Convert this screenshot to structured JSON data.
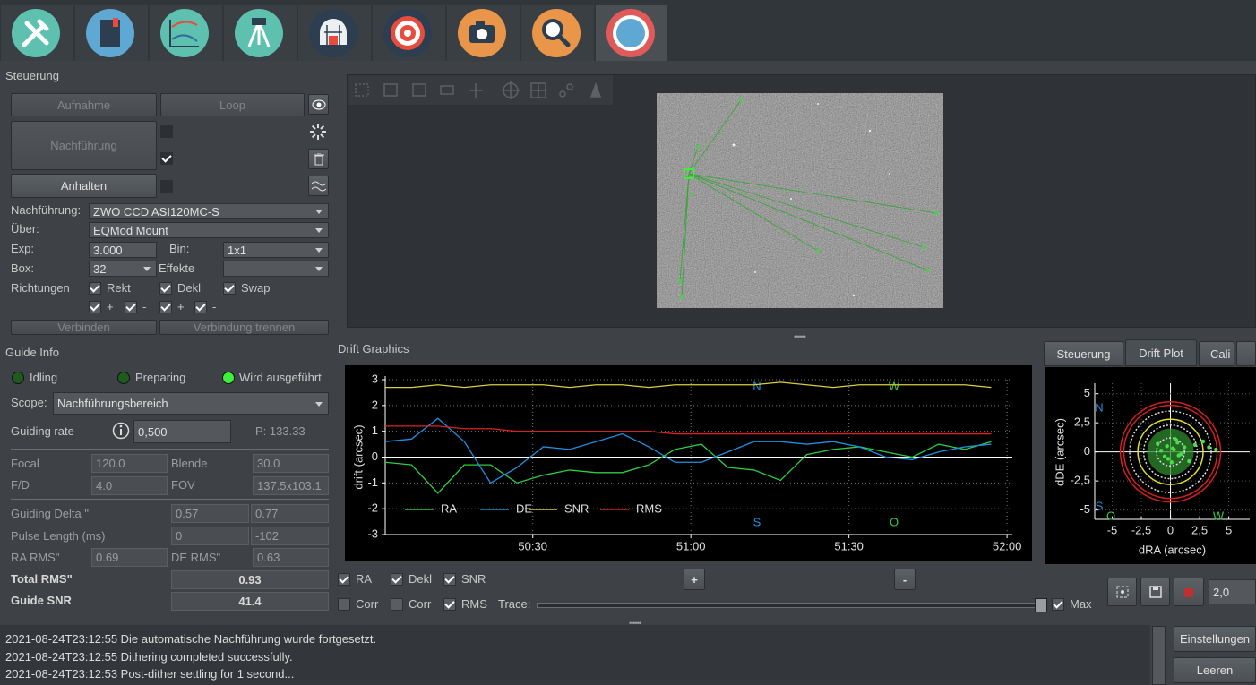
{
  "control": {
    "title": "Steuerung",
    "buttons": [
      "Aufnahme",
      "Loop",
      "Nachführung",
      "Anhalten",
      "Verbinden",
      "Verbindung trennen"
    ],
    "guider_label": "Nachführung:",
    "guider": "ZWO CCD ASI120MC-S",
    "via_label": "Über:",
    "via": "EQMod Mount",
    "exp_label": "Exp:",
    "exp": "3.000",
    "bin_label": "Bin:",
    "bin": "1x1",
    "box_label": "Box:",
    "box": "32",
    "effects_label": "Effekte",
    "effects": "--",
    "directions_label": "Richtungen",
    "ra": "Rekt",
    "dec": "Dekl",
    "swap": "Swap",
    "plus": "+",
    "minus": "-"
  },
  "guide_info": {
    "title": "Guide Info",
    "states": [
      "Idling",
      "Preparing",
      "Wird ausgeführt"
    ],
    "scope_label": "Scope:",
    "scope": "Nachführungsbereich",
    "rate_label": "Guiding rate",
    "rate": "0,500",
    "p": "P: 133.33",
    "focal_label": "Focal",
    "focal": "120.0",
    "aperture_label": "Blende",
    "aperture": "30.0",
    "fd_label": "F/D",
    "fd": "4.0",
    "fov_label": "FOV",
    "fov": "137.5x103.1",
    "delta_label": "Guiding Delta \"",
    "delta": [
      "0.57",
      "0.77"
    ],
    "pulse_label": "Pulse Length (ms)",
    "pulse": [
      "0",
      "-102"
    ],
    "ra_rms_label": "RA RMS\"",
    "ra_rms": "0.69",
    "de_rms_label": "DE RMS\"",
    "de_rms": "0.63",
    "total_rms_label": "Total RMS\"",
    "total_rms": "0.93",
    "snr_label": "Guide SNR",
    "snr": "41.4"
  },
  "drift_title": "Drift Graphics",
  "chart_data": [
    {
      "type": "line",
      "ylabel": "drift (arcsec)",
      "x": [
        3002,
        3007,
        3012,
        3017,
        3022,
        3027,
        3032,
        3037,
        3042,
        3047,
        3052,
        3057,
        3062,
        3067,
        3072,
        3077,
        3082,
        3087,
        3092,
        3097,
        3102,
        3107,
        3112,
        3117
      ],
      "xlim": [
        3002,
        3121
      ],
      "xticks": [
        {
          "value": 3030,
          "label": "50:30"
        },
        {
          "value": 3060,
          "label": "51:00"
        },
        {
          "value": 3090,
          "label": "51:30"
        },
        {
          "value": 3120,
          "label": "52:00"
        }
      ],
      "ylim": [
        -3,
        3
      ],
      "yticks": [
        -3,
        -2,
        -1,
        0,
        1,
        2,
        3
      ],
      "grid": true,
      "series": [
        {
          "name": "RA",
          "color": "#2ecc40",
          "values": [
            -0.2,
            -0.3,
            -1.4,
            -0.3,
            -0.3,
            -1.0,
            -0.7,
            -0.5,
            -0.6,
            -0.6,
            -0.3,
            0.3,
            0.5,
            -0.4,
            -0.5,
            -0.9,
            0.1,
            0.3,
            0.4,
            0.2,
            0.0,
            0.5,
            0.3,
            0.6
          ]
        },
        {
          "name": "DE",
          "color": "#1f8fe0",
          "values": [
            0.6,
            0.7,
            1.5,
            0.6,
            -1.0,
            -0.4,
            0.4,
            0.3,
            0.6,
            0.9,
            0.4,
            -0.2,
            -0.2,
            0.2,
            0.6,
            0.6,
            0.5,
            0.6,
            0.4,
            0.0,
            -0.1,
            0.2,
            0.4,
            0.5
          ]
        },
        {
          "name": "SNR",
          "color": "#d8d040",
          "values": [
            2.7,
            2.7,
            2.8,
            2.7,
            2.8,
            2.8,
            2.8,
            2.7,
            2.8,
            2.8,
            2.7,
            2.8,
            2.8,
            2.8,
            2.8,
            2.9,
            2.8,
            2.7,
            2.8,
            2.8,
            2.8,
            2.8,
            2.8,
            2.7
          ]
        },
        {
          "name": "RMS",
          "color": "#e02020",
          "values": [
            1.2,
            1.2,
            1.2,
            1.1,
            1.1,
            1.0,
            1.0,
            1.0,
            1.0,
            1.0,
            1.0,
            0.9,
            0.9,
            0.9,
            0.9,
            0.9,
            0.9,
            0.9,
            0.9,
            0.9,
            0.9,
            0.9,
            0.9,
            0.9
          ]
        }
      ],
      "annotations": [
        "N",
        "W",
        "S",
        "O"
      ]
    },
    {
      "type": "scatter",
      "xlabel": "dRA (arcsec)",
      "ylabel": "dDE (arcsec)",
      "xlim": [
        -6.5,
        6.8
      ],
      "ylim": [
        -5.8,
        5.9
      ],
      "xticks": [
        -5,
        {
          "value": -2.5,
          "label": "-2,5"
        },
        0,
        {
          "value": 2.5,
          "label": "2,5"
        },
        5
      ],
      "yticks": [
        -5,
        {
          "value": -2.5,
          "label": "-2,5"
        },
        0,
        {
          "value": 2.5,
          "label": "2,5"
        },
        5
      ],
      "grid": true,
      "color": "#46e046",
      "x": [
        0.2,
        -0.5,
        0.6,
        -0.3,
        0.9,
        0.1,
        -0.8,
        0.4,
        1.2,
        -0.2,
        0.7,
        2.1,
        2.8,
        3.3,
        3.9,
        1.6,
        -1.1,
        0.3
      ],
      "y": [
        0.3,
        -0.4,
        0.8,
        0.5,
        -0.2,
        -0.9,
        0.1,
        1.1,
        0.4,
        -0.6,
        -0.3,
        0.6,
        0.9,
        0.4,
        0.2,
        -0.8,
        0.7,
        0.2
      ],
      "annotations": [
        "N",
        "W",
        "S",
        "O"
      ]
    }
  ],
  "graph_controls": {
    "ra": "RA",
    "dec": "Dekl",
    "snr": "SNR",
    "corr": "Corr",
    "rms": "RMS",
    "trace": "Trace:",
    "max": "Max",
    "plus": "+",
    "minus": "-"
  },
  "right_tabs": [
    "Steuerung",
    "Drift Plot",
    "Cali"
  ],
  "zoom": "2,0",
  "log": [
    "2021-08-24T23:12:55 Die automatische Nachführung wurde fortgesetzt.",
    "2021-08-24T23:12:55 Dithering completed successfully.",
    "2021-08-24T23:12:53 Post-dither settling for 1 second..."
  ],
  "log_buttons": [
    "Einstellungen",
    "Leeren"
  ]
}
